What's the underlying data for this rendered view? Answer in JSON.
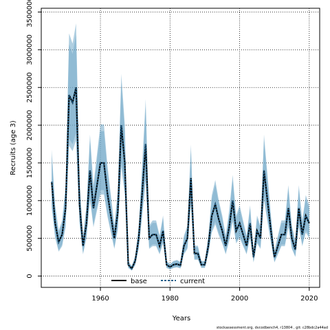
{
  "chart_data": {
    "type": "line",
    "xlabel": "Years",
    "ylabel": "Recruits (age 3)",
    "xlim": [
      1943,
      2023
    ],
    "ylim": [
      -150000,
      3550000
    ],
    "x_ticks": [
      1960,
      1980,
      2000,
      2020
    ],
    "y_ticks": [
      0,
      500000,
      1000000,
      1500000,
      2000000,
      2500000,
      3000000,
      3500000
    ],
    "grid": true,
    "legend": {
      "placement": "bottom-center",
      "entries": [
        "base",
        "current"
      ]
    },
    "footer": "stockassessment.org, dvcodbench4, r13804 , git: c28bdc2a44ad",
    "colors": {
      "band": "#6fa8c8",
      "base_line": "#000000",
      "current_line": "#1f5f8b"
    },
    "x": [
      1946,
      1947,
      1948,
      1949,
      1950,
      1951,
      1952,
      1953,
      1954,
      1955,
      1956,
      1957,
      1958,
      1959,
      1960,
      1961,
      1962,
      1963,
      1964,
      1965,
      1966,
      1967,
      1968,
      1969,
      1970,
      1971,
      1972,
      1973,
      1974,
      1975,
      1976,
      1977,
      1978,
      1979,
      1980,
      1981,
      1982,
      1983,
      1984,
      1985,
      1986,
      1987,
      1988,
      1989,
      1990,
      1991,
      1992,
      1993,
      1994,
      1995,
      1996,
      1997,
      1998,
      1999,
      2000,
      2001,
      2002,
      2003,
      2004,
      2005,
      2006,
      2007,
      2008,
      2009,
      2010,
      2011,
      2012,
      2013,
      2014,
      2015,
      2016,
      2017,
      2018,
      2019,
      2020
    ],
    "series": [
      {
        "name": "base",
        "values": [
          1250000,
          700000,
          450000,
          550000,
          900000,
          2400000,
          2300000,
          2500000,
          950000,
          400000,
          700000,
          1400000,
          900000,
          1200000,
          1500000,
          1500000,
          1100000,
          800000,
          500000,
          850000,
          2000000,
          1500000,
          150000,
          100000,
          200000,
          500000,
          1100000,
          1750000,
          500000,
          550000,
          550000,
          400000,
          600000,
          150000,
          120000,
          150000,
          160000,
          140000,
          400000,
          500000,
          1300000,
          300000,
          300000,
          150000,
          150000,
          400000,
          800000,
          950000,
          750000,
          600000,
          400000,
          650000,
          1000000,
          600000,
          700000,
          550000,
          400000,
          700000,
          250000,
          600000,
          500000,
          1400000,
          1000000,
          600000,
          250000,
          400000,
          550000,
          550000,
          900000,
          500000,
          350000,
          900000,
          550000,
          800000,
          700000
        ]
      },
      {
        "name": "current",
        "values": [
          1250000,
          700000,
          450000,
          550000,
          900000,
          2400000,
          2300000,
          2500000,
          950000,
          400000,
          700000,
          1400000,
          900000,
          1200000,
          1500000,
          1500000,
          1100000,
          800000,
          500000,
          850000,
          2000000,
          1500000,
          150000,
          100000,
          200000,
          500000,
          1100000,
          1750000,
          500000,
          550000,
          550000,
          400000,
          600000,
          150000,
          120000,
          150000,
          160000,
          140000,
          400000,
          500000,
          1300000,
          300000,
          300000,
          150000,
          150000,
          400000,
          800000,
          950000,
          750000,
          600000,
          400000,
          650000,
          1000000,
          600000,
          700000,
          550000,
          400000,
          700000,
          250000,
          600000,
          500000,
          1400000,
          1000000,
          600000,
          250000,
          400000,
          550000,
          550000,
          900000,
          500000,
          350000,
          900000,
          550000,
          800000,
          700000
        ]
      }
    ]
  }
}
